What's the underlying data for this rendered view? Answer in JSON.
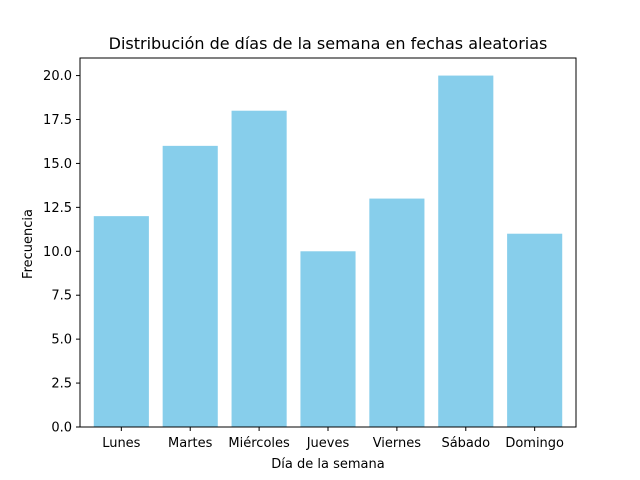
{
  "chart_data": {
    "type": "bar",
    "title": "Distribución de días de la semana en fechas aleatorias",
    "xlabel": "Día de la semana",
    "ylabel": "Frecuencia",
    "categories": [
      "Lunes",
      "Martes",
      "Miércoles",
      "Jueves",
      "Viernes",
      "Sábado",
      "Domingo"
    ],
    "values": [
      12,
      16,
      18,
      10,
      13,
      20,
      11
    ],
    "ylim": [
      0,
      21
    ],
    "yticks": [
      "0.0",
      "2.5",
      "5.0",
      "7.5",
      "10.0",
      "12.5",
      "15.0",
      "17.5",
      "20.0"
    ],
    "grid": false,
    "bar_color": "#87ceeb"
  }
}
